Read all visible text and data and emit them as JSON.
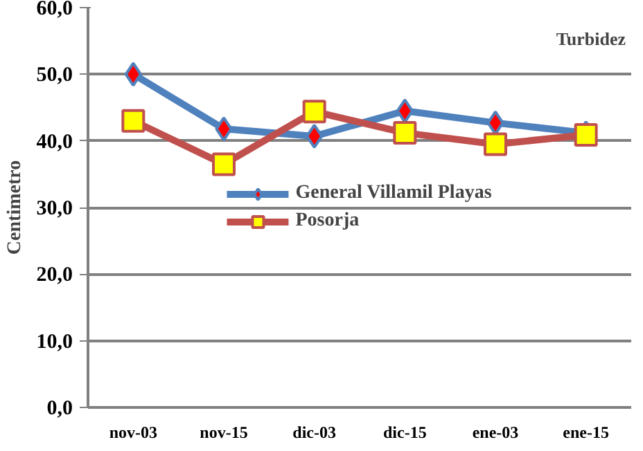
{
  "chart_data": {
    "type": "line",
    "title": "Turbidez",
    "ylabel": "Centimetro",
    "categories": [
      "nov-03",
      "nov-15",
      "dic-03",
      "dic-15",
      "ene-03",
      "ene-15"
    ],
    "series": [
      {
        "name": "General Villamil Playas",
        "color": "#4f81bd",
        "marker": "diamond",
        "values": [
          50.0,
          41.8,
          40.7,
          44.5,
          42.7,
          41.2
        ]
      },
      {
        "name": "Posorja",
        "color": "#c0504d",
        "marker": "square",
        "values": [
          43.0,
          36.5,
          44.4,
          41.2,
          39.5,
          40.9
        ]
      }
    ],
    "ylim": [
      0,
      60
    ],
    "yticks": [
      {
        "value": 0,
        "label": "0,0"
      },
      {
        "value": 10,
        "label": "10,0"
      },
      {
        "value": 20,
        "label": "20,0"
      },
      {
        "value": 30,
        "label": "30,0"
      },
      {
        "value": 40,
        "label": "40,0"
      },
      {
        "value": 50,
        "label": "50,0"
      },
      {
        "value": 60,
        "label": "60,0"
      }
    ],
    "grid": "y",
    "legend": "center",
    "line_style": "solid"
  }
}
